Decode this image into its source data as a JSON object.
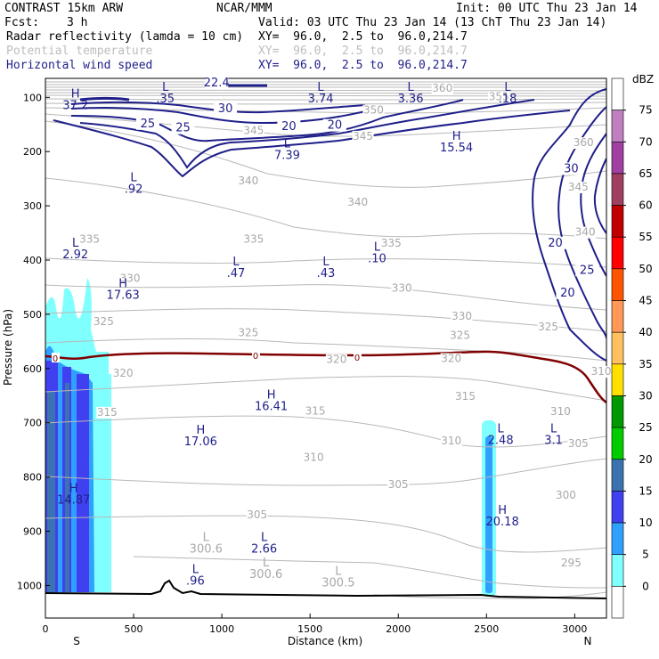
{
  "header": {
    "model": "CONTRAST 15km ARW",
    "org": "NCAR/MMM",
    "init": "Init: 00 UTC Thu 23 Jan 14",
    "fcst_label": "Fcst:",
    "fcst_value": "3 h",
    "valid": "Valid: 03 UTC Thu 23 Jan 14 (13 ChT Thu 23 Jan 14)",
    "fields": [
      {
        "name": "Radar reflectivity (lamda = 10 cm)",
        "xy": "XY=  96.0,  2.5 to  96.0,214.7"
      },
      {
        "name": "Potential temperature",
        "xy": "XY=  96.0,  2.5 to  96.0,214.7"
      },
      {
        "name": "Horizontal wind speed",
        "xy": "XY=  96.0,  2.5 to  96.0,214.7"
      }
    ]
  },
  "chart_data": {
    "type": "cross-section",
    "xlabel": "Distance (km)",
    "ylabel": "Pressure (hPa)",
    "xlim": [
      0,
      3180
    ],
    "ylim": [
      1060,
      65
    ],
    "x_ticks": [
      0,
      500,
      1000,
      1500,
      2000,
      2500,
      3000
    ],
    "y_ticks": [
      100,
      200,
      300,
      400,
      500,
      600,
      700,
      800,
      900,
      1000
    ],
    "x_end_labels": {
      "left": "S",
      "right": "N"
    },
    "colorbar": {
      "unit": "dBZ",
      "levels": [
        75,
        70,
        65,
        60,
        55,
        50,
        45,
        40,
        35,
        30,
        25,
        20,
        15,
        10,
        5,
        0
      ],
      "colors": [
        "#ffffff",
        "#c080c0",
        "#a040a0",
        "#a04060",
        "#c00000",
        "#ff0000",
        "#ff5500",
        "#ff9955",
        "#ffc060",
        "#ffe000",
        "#009900",
        "#00cc00",
        "#3b72b0",
        "#4040f0",
        "#30a0ff",
        "#80ffff",
        "#ffffff"
      ]
    },
    "theta_labels": [
      {
        "x": 1180,
        "p": 168,
        "t": "345"
      },
      {
        "x": 1800,
        "p": 178,
        "t": "345"
      },
      {
        "x": 2250,
        "p": 90,
        "t": "360"
      },
      {
        "x": 1860,
        "p": 130,
        "t": "350"
      },
      {
        "x": 2570,
        "p": 105,
        "t": "355"
      },
      {
        "x": 3020,
        "p": 272,
        "t": "345"
      },
      {
        "x": 3050,
        "p": 190,
        "t": "360"
      },
      {
        "x": 1150,
        "p": 260,
        "t": "340"
      },
      {
        "x": 1770,
        "p": 300,
        "t": "340"
      },
      {
        "x": 250,
        "p": 368,
        "t": "335"
      },
      {
        "x": 1180,
        "p": 368,
        "t": "335"
      },
      {
        "x": 1960,
        "p": 375,
        "t": "335"
      },
      {
        "x": 3060,
        "p": 355,
        "t": "340"
      },
      {
        "x": 480,
        "p": 440,
        "t": "330"
      },
      {
        "x": 2020,
        "p": 458,
        "t": "330"
      },
      {
        "x": 2360,
        "p": 510,
        "t": "330"
      },
      {
        "x": 330,
        "p": 520,
        "t": "325"
      },
      {
        "x": 1150,
        "p": 540,
        "t": "325"
      },
      {
        "x": 2350,
        "p": 545,
        "t": "325"
      },
      {
        "x": 2850,
        "p": 530,
        "t": "325"
      },
      {
        "x": 1650,
        "p": 590,
        "t": "320"
      },
      {
        "x": 2300,
        "p": 588,
        "t": "320"
      },
      {
        "x": 440,
        "p": 615,
        "t": "320"
      },
      {
        "x": 350,
        "p": 687,
        "t": "315"
      },
      {
        "x": 1530,
        "p": 685,
        "t": "315"
      },
      {
        "x": 2380,
        "p": 658,
        "t": "315"
      },
      {
        "x": 2920,
        "p": 686,
        "t": "310"
      },
      {
        "x": 3150,
        "p": 612,
        "t": "310"
      },
      {
        "x": 1520,
        "p": 770,
        "t": "310"
      },
      {
        "x": 2300,
        "p": 740,
        "t": "310"
      },
      {
        "x": 3020,
        "p": 745,
        "t": "305"
      },
      {
        "x": 1200,
        "p": 876,
        "t": "305"
      },
      {
        "x": 2000,
        "p": 820,
        "t": "305"
      },
      {
        "x": 2950,
        "p": 840,
        "t": "300"
      },
      {
        "x": 2980,
        "p": 965,
        "t": "295"
      }
    ],
    "speed_labels": [
      {
        "x": 970,
        "p": 80,
        "t": "22.4"
      },
      {
        "x": 1020,
        "p": 127,
        "t": "30"
      },
      {
        "x": 580,
        "p": 155,
        "t": "25"
      },
      {
        "x": 780,
        "p": 163,
        "t": "25"
      },
      {
        "x": 1380,
        "p": 160,
        "t": "20"
      },
      {
        "x": 1640,
        "p": 158,
        "t": "20"
      },
      {
        "x": 2980,
        "p": 238,
        "t": "30"
      },
      {
        "x": 2890,
        "p": 375,
        "t": "20"
      },
      {
        "x": 3070,
        "p": 425,
        "t": "25"
      },
      {
        "x": 2960,
        "p": 467,
        "t": "20"
      }
    ],
    "hl_markers": [
      {
        "type": "H",
        "x": 170,
        "p": 100,
        "val": "37.2",
        "c": "#1f1f8a"
      },
      {
        "type": "L",
        "x": 680,
        "p": 88,
        "val": ".35",
        "c": "#1f1f8a"
      },
      {
        "type": "L",
        "x": 1560,
        "p": 88,
        "val": "3.74",
        "c": "#1f1f8a"
      },
      {
        "type": "L",
        "x": 2070,
        "p": 88,
        "val": "3.36",
        "c": "#1f1f8a"
      },
      {
        "type": "L",
        "x": 2620,
        "p": 88,
        "val": ".18",
        "c": "#1f1f8a"
      },
      {
        "type": "H",
        "x": 2330,
        "p": 178,
        "val": "15.54",
        "c": "#1f1f8a"
      },
      {
        "type": "L",
        "x": 1370,
        "p": 192,
        "val": "7.39",
        "c": "#1f1f8a"
      },
      {
        "type": "L",
        "x": 500,
        "p": 255,
        "val": ".92",
        "c": "#1f1f8a"
      },
      {
        "type": "L",
        "x": 170,
        "p": 375,
        "val": "2.92",
        "c": "#1f1f8a"
      },
      {
        "type": "L",
        "x": 1080,
        "p": 410,
        "val": ".47",
        "c": "#1f1f8a"
      },
      {
        "type": "L",
        "x": 1590,
        "p": 410,
        "val": ".43",
        "c": "#1f1f8a"
      },
      {
        "type": "L",
        "x": 1880,
        "p": 383,
        "val": ".10",
        "c": "#1f1f8a"
      },
      {
        "type": "H",
        "x": 440,
        "p": 450,
        "val": "17.63",
        "c": "#1f1f8a"
      },
      {
        "type": "H",
        "x": 1280,
        "p": 655,
        "val": "16.41",
        "c": "#1f1f8a"
      },
      {
        "type": "H",
        "x": 880,
        "p": 720,
        "val": "17.06",
        "c": "#1f1f8a"
      },
      {
        "type": "L",
        "x": 2580,
        "p": 718,
        "val": "2.48",
        "c": "#1f1f8a"
      },
      {
        "type": "L",
        "x": 2880,
        "p": 718,
        "val": "3.1",
        "c": "#1f1f8a"
      },
      {
        "type": "H",
        "x": 160,
        "p": 828,
        "val": "14.87",
        "c": "#1f1f8a"
      },
      {
        "type": "H",
        "x": 2590,
        "p": 868,
        "val": "20.18",
        "c": "#1f1f8a"
      },
      {
        "type": "L",
        "x": 1240,
        "p": 918,
        "val": "2.66",
        "c": "#1f1f8a"
      },
      {
        "type": "L",
        "x": 850,
        "p": 977,
        "val": ".96",
        "c": "#1f1f8a"
      },
      {
        "type": "L",
        "x": 910,
        "p": 918,
        "val": "300.6",
        "c": "#a8a8a8"
      },
      {
        "type": "L",
        "x": 1250,
        "p": 965,
        "val": "300.6",
        "c": "#a8a8a8"
      },
      {
        "type": "L",
        "x": 1660,
        "p": 980,
        "val": "300.5",
        "c": "#a8a8a8"
      }
    ],
    "freezing_level_label": "0"
  }
}
